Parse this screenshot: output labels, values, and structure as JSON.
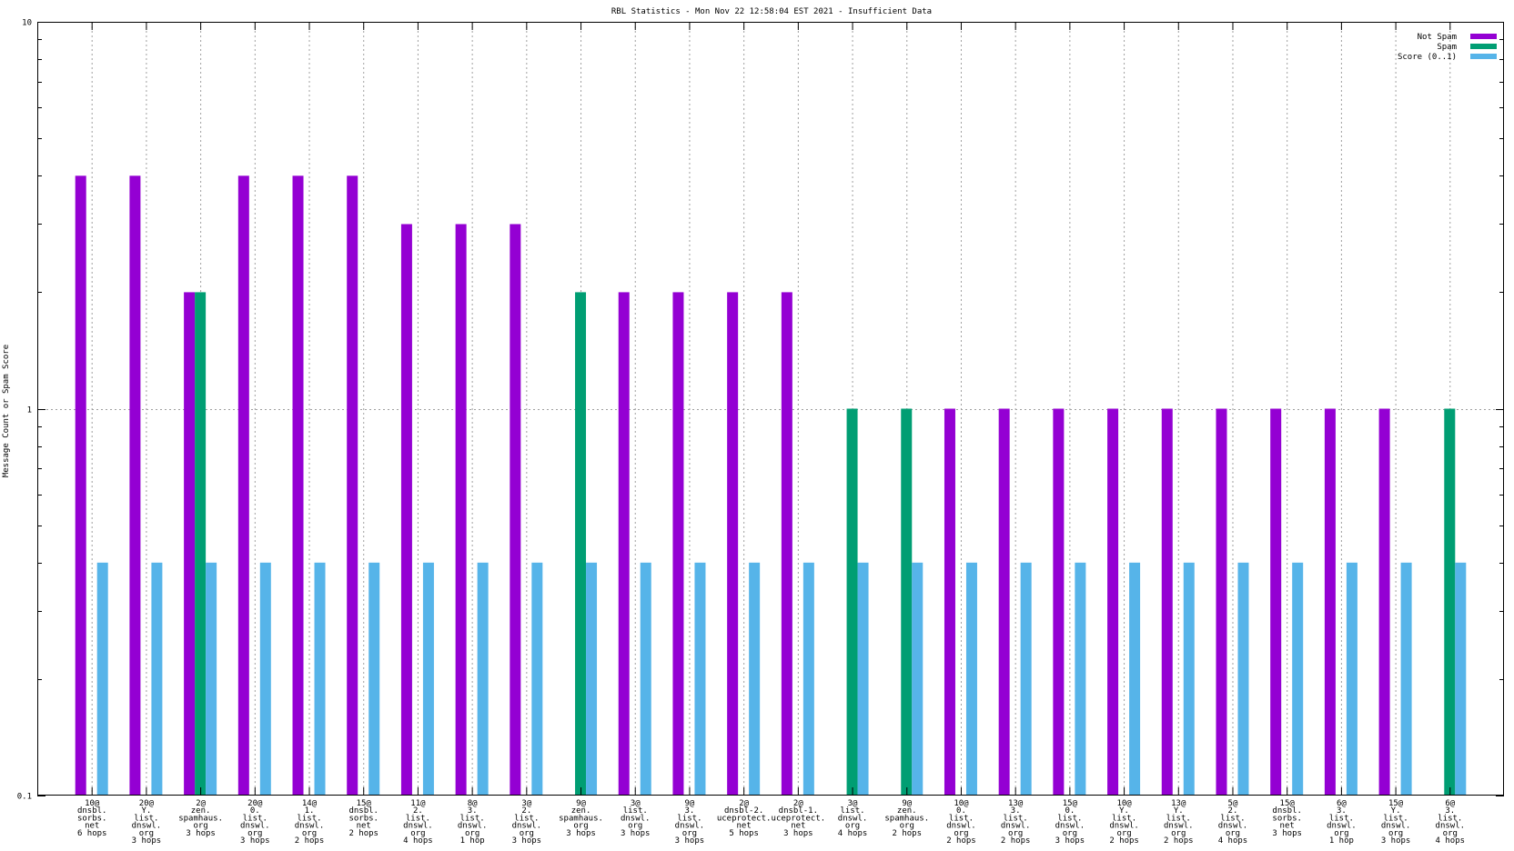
{
  "chart_data": {
    "type": "bar",
    "title": "RBL Statistics - Mon Nov 22 12:58:04 EST 2021 - Insufficient Data",
    "ylabel": "Message Count or Spam Score",
    "xlabel": "",
    "yscale": "log",
    "ylim": [
      0.1,
      10
    ],
    "yticks": [
      "0.1",
      "1",
      "10"
    ],
    "grid": true,
    "legend_position": "top-right",
    "categories": [
      [
        "10@",
        "dnsbl.",
        "sorbs.",
        "net",
        "6 hops"
      ],
      [
        "20@",
        "Y.",
        "list.",
        "dnswl.",
        "org",
        "3 hops"
      ],
      [
        "2@",
        "zen.",
        "spamhaus.",
        "org",
        "3 hops"
      ],
      [
        "20@",
        "0.",
        "list.",
        "dnswl.",
        "org",
        "3 hops"
      ],
      [
        "14@",
        "1.",
        "list.",
        "dnswl.",
        "org",
        "2 hops"
      ],
      [
        "15@",
        "dnsbl.",
        "sorbs.",
        "net",
        "2 hops"
      ],
      [
        "11@",
        "2.",
        "list.",
        "dnswl.",
        "org",
        "4 hops"
      ],
      [
        "8@",
        "3.",
        "list.",
        "dnswl.",
        "org",
        "1 hop"
      ],
      [
        "3@",
        "2.",
        "list.",
        "dnswl.",
        "org",
        "3 hops"
      ],
      [
        "9@",
        "zen.",
        "spamhaus.",
        "org",
        "3 hops"
      ],
      [
        "3@",
        "list.",
        "dnswl.",
        "org",
        "3 hops"
      ],
      [
        "9@",
        "3.",
        "list.",
        "dnswl.",
        "org",
        "3 hops"
      ],
      [
        "2@",
        "dnsbl-2.",
        "uceprotect.",
        "net",
        "5 hops"
      ],
      [
        "2@",
        "dnsbl-1.",
        "uceprotect.",
        "net",
        "3 hops"
      ],
      [
        "3@",
        "list.",
        "dnswl.",
        "org",
        "4 hops"
      ],
      [
        "9@",
        "zen.",
        "spamhaus.",
        "org",
        "2 hops"
      ],
      [
        "10@",
        "0.",
        "list.",
        "dnswl.",
        "org",
        "2 hops"
      ],
      [
        "13@",
        "3.",
        "list.",
        "dnswl.",
        "org",
        "2 hops"
      ],
      [
        "15@",
        "0.",
        "list.",
        "dnswl.",
        "org",
        "3 hops"
      ],
      [
        "10@",
        "Y.",
        "list.",
        "dnswl.",
        "org",
        "2 hops"
      ],
      [
        "13@",
        "Y.",
        "list.",
        "dnswl.",
        "org",
        "2 hops"
      ],
      [
        "5@",
        "2.",
        "list.",
        "dnswl.",
        "org",
        "4 hops"
      ],
      [
        "15@",
        "dnsbl.",
        "sorbs.",
        "net",
        "3 hops"
      ],
      [
        "6@",
        "3.",
        "list.",
        "dnswl.",
        "org",
        "1 hop"
      ],
      [
        "15@",
        "Y.",
        "list.",
        "dnswl.",
        "org",
        "3 hops"
      ],
      [
        "6@",
        "3.",
        "list.",
        "dnswl.",
        "org",
        "4 hops"
      ]
    ],
    "series": [
      {
        "name": "Not Spam",
        "color": "#9400d3",
        "values": [
          4,
          4,
          2,
          4,
          4,
          4,
          3,
          3,
          3,
          null,
          2,
          2,
          2,
          2,
          null,
          null,
          1,
          1,
          1,
          1,
          1,
          1,
          1,
          1,
          1,
          null
        ]
      },
      {
        "name": "Spam",
        "color": "#009e73",
        "values": [
          null,
          null,
          2,
          null,
          null,
          null,
          null,
          null,
          null,
          2,
          null,
          null,
          null,
          null,
          1,
          1,
          null,
          null,
          null,
          null,
          null,
          null,
          null,
          null,
          null,
          1
        ]
      },
      {
        "name": "Score (0..1)",
        "color": "#56b4e9",
        "values": [
          0.4,
          0.4,
          0.4,
          0.4,
          0.4,
          0.4,
          0.4,
          0.4,
          0.4,
          0.4,
          0.4,
          0.4,
          0.4,
          0.4,
          0.4,
          0.4,
          0.4,
          0.4,
          0.4,
          0.4,
          0.4,
          0.4,
          0.4,
          0.4,
          0.4,
          0.4
        ]
      }
    ]
  }
}
